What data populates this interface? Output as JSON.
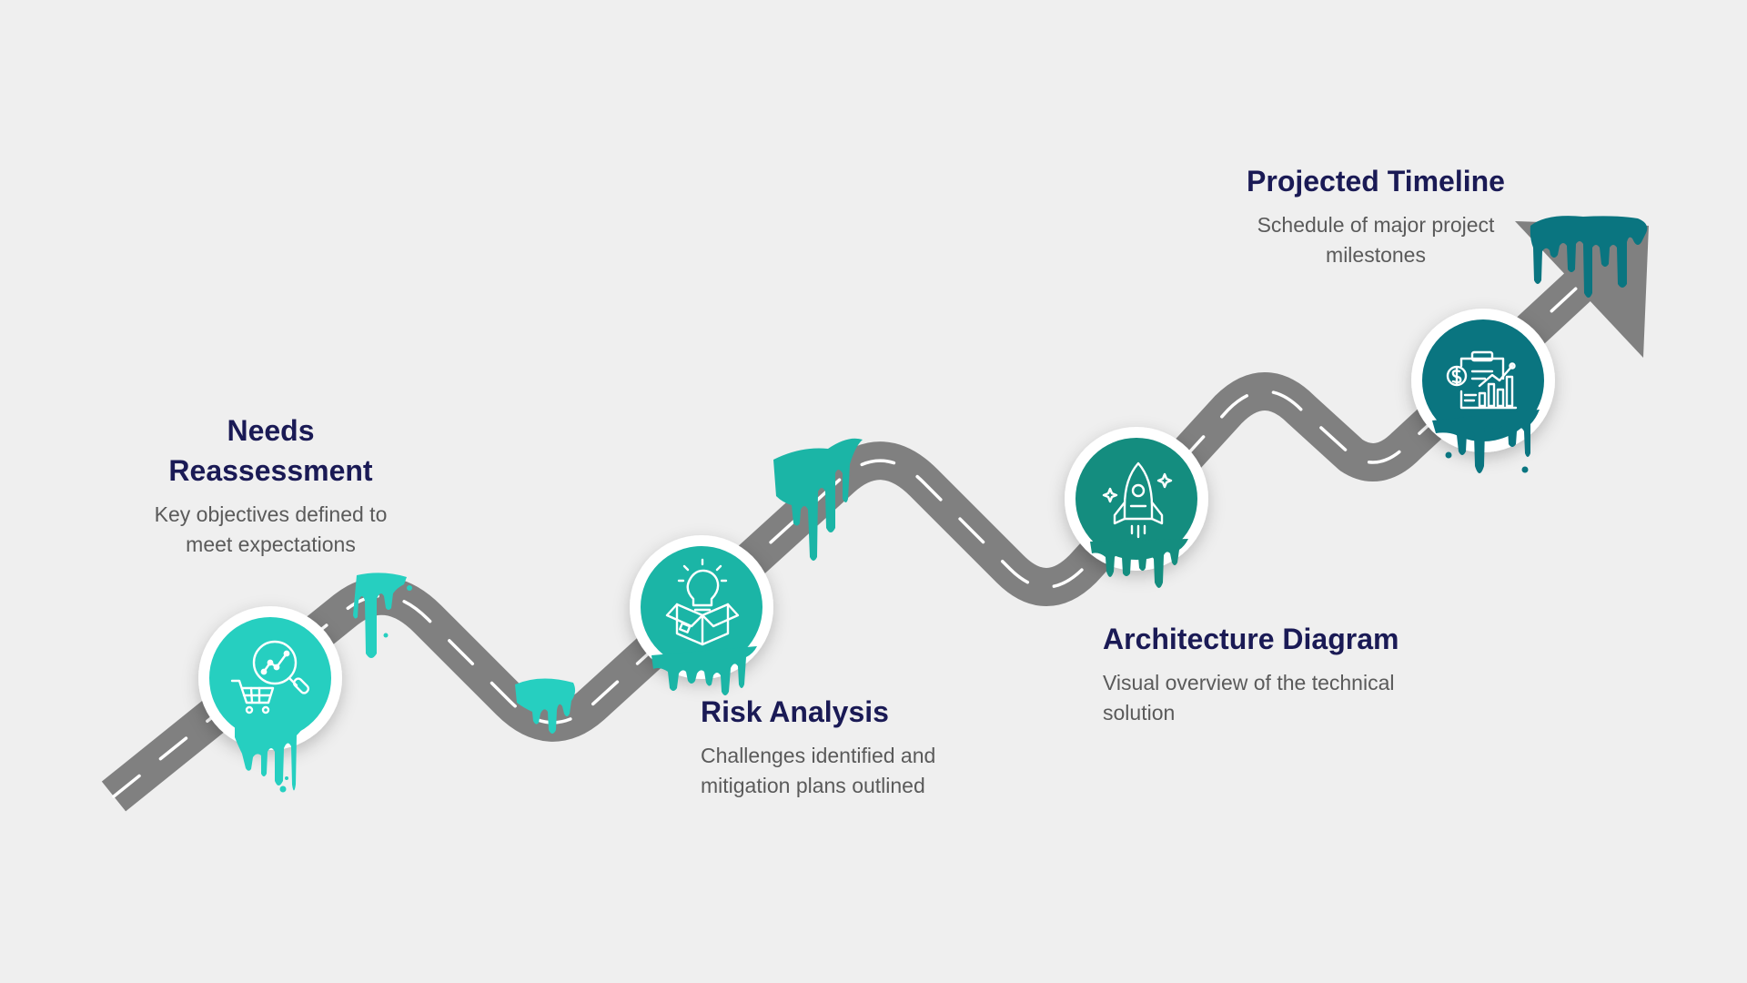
{
  "colors": {
    "background": "#efefef",
    "road": "#808080",
    "lane": "#ffffff",
    "title": "#1a1a55",
    "description": "#5a5a5a",
    "step1": "#26cfc0",
    "step2": "#1bb5a6",
    "step3": "#148d7f",
    "step4": "#0a7580"
  },
  "steps": [
    {
      "title": "Needs Reassessment",
      "description": "Key objectives defined to meet expectations",
      "icon": "shopping-cart-analytics-icon"
    },
    {
      "title": "Risk Analysis",
      "description": "Challenges identified and mitigation plans outlined",
      "icon": "box-lightbulb-icon"
    },
    {
      "title": "Architecture Diagram",
      "description": "Visual overview of the technical solution",
      "icon": "rocket-icon"
    },
    {
      "title": "Projected Timeline",
      "description": "Schedule of major project milestones",
      "icon": "clipboard-chart-dollar-icon"
    }
  ]
}
